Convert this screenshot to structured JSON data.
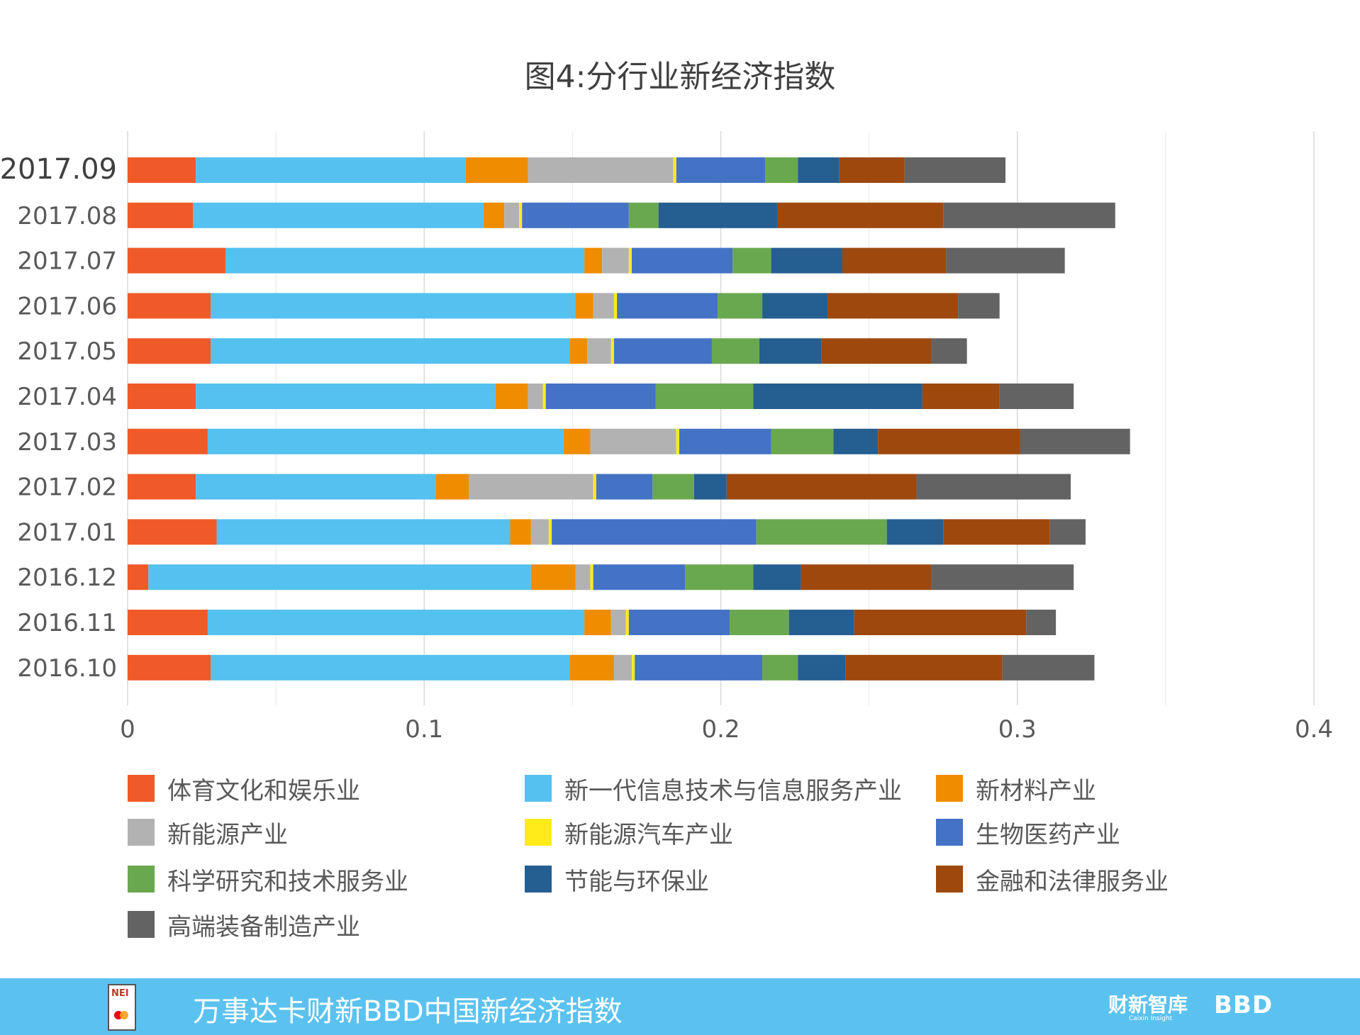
{
  "title": "图4:分行业新经济指数",
  "chart_data": {
    "type": "bar",
    "orientation": "horizontal",
    "stacked": true,
    "title": "图4:分行业新经济指数",
    "xlim": [
      0,
      0.4
    ],
    "xticks": [
      "0",
      "0.1",
      "0.2",
      "0.3",
      "0.4"
    ],
    "grid": "vertical",
    "legend_position": "bottom",
    "categories": [
      "2017.09",
      "2017.08",
      "2017.07",
      "2017.06",
      "2017.05",
      "2017.04",
      "2017.03",
      "2017.02",
      "2017.01",
      "2016.12",
      "2016.11",
      "2016.10"
    ],
    "highlight_category": "2017.09",
    "series": [
      {
        "name": "体育文化和娱乐业",
        "color": "#f05a28",
        "values": [
          0.023,
          0.022,
          0.033,
          0.028,
          0.028,
          0.023,
          0.027,
          0.023,
          0.03,
          0.007,
          0.027,
          0.028
        ]
      },
      {
        "name": "新一代信息技术与信息服务产业",
        "color": "#54c1f0",
        "values": [
          0.091,
          0.098,
          0.121,
          0.123,
          0.121,
          0.101,
          0.12,
          0.081,
          0.099,
          0.129,
          0.127,
          0.121
        ]
      },
      {
        "name": "新材料产业",
        "color": "#f08c00",
        "values": [
          0.021,
          0.007,
          0.006,
          0.006,
          0.006,
          0.011,
          0.009,
          0.011,
          0.007,
          0.015,
          0.009,
          0.015
        ]
      },
      {
        "name": "新能源产业",
        "color": "#b2b2b2",
        "values": [
          0.049,
          0.005,
          0.009,
          0.007,
          0.008,
          0.005,
          0.029,
          0.042,
          0.006,
          0.005,
          0.005,
          0.006
        ]
      },
      {
        "name": "新能源汽车产业",
        "color": "#ffeb1a",
        "values": [
          0.001,
          0.001,
          0.001,
          0.001,
          0.001,
          0.001,
          0.001,
          0.001,
          0.001,
          0.001,
          0.001,
          0.001
        ]
      },
      {
        "name": "生物医药产业",
        "color": "#4472c4",
        "values": [
          0.03,
          0.036,
          0.034,
          0.034,
          0.033,
          0.037,
          0.031,
          0.019,
          0.069,
          0.031,
          0.034,
          0.043
        ]
      },
      {
        "name": "科学研究和技术服务业",
        "color": "#6aa84f",
        "values": [
          0.011,
          0.01,
          0.013,
          0.015,
          0.016,
          0.033,
          0.021,
          0.014,
          0.044,
          0.023,
          0.02,
          0.012
        ]
      },
      {
        "name": "节能与环保业",
        "color": "#255e91",
        "values": [
          0.014,
          0.04,
          0.024,
          0.022,
          0.021,
          0.057,
          0.015,
          0.011,
          0.019,
          0.016,
          0.022,
          0.016
        ]
      },
      {
        "name": "金融和法律服务业",
        "color": "#9e480e",
        "values": [
          0.022,
          0.056,
          0.035,
          0.044,
          0.037,
          0.026,
          0.048,
          0.064,
          0.036,
          0.044,
          0.058,
          0.053
        ]
      },
      {
        "name": "高端装备制造产业",
        "color": "#636363",
        "values": [
          0.034,
          0.058,
          0.04,
          0.014,
          0.012,
          0.025,
          0.037,
          0.052,
          0.012,
          0.048,
          0.01,
          0.031
        ]
      }
    ]
  },
  "footer": {
    "title": "万事达卡财新BBD中国新经济指数",
    "logo_text": "NEI",
    "brand_caixin": "财新智库",
    "brand_caixin_sub": "Caixin Insight",
    "brand_bbd": "BBD",
    "background": "#5bc2ef"
  }
}
